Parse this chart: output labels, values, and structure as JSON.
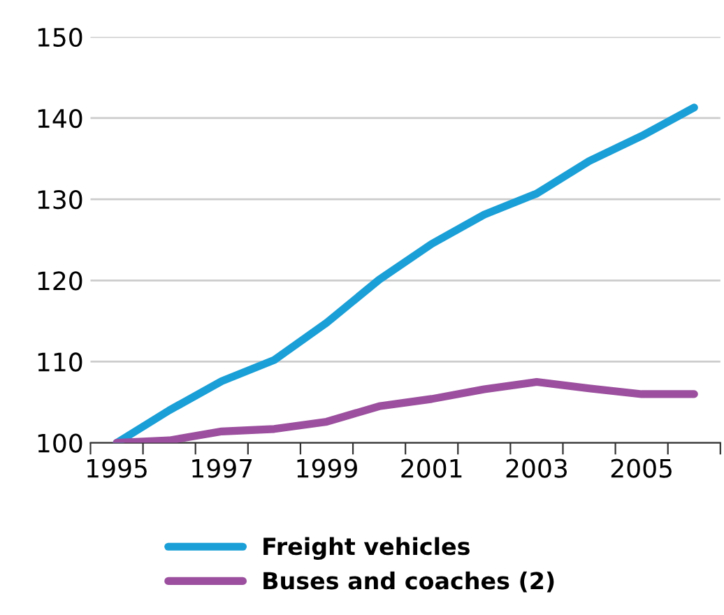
{
  "chart_data": {
    "type": "line",
    "x": [
      1995,
      1996,
      1997,
      1998,
      1999,
      2000,
      2001,
      2002,
      2003,
      2004,
      2005,
      2006
    ],
    "series": [
      {
        "name": "Freight vehicles",
        "color": "#1a9fd6",
        "values": [
          100,
          104.0,
          107.6,
          110.2,
          114.8,
          120.1,
          124.5,
          128.1,
          130.7,
          134.7,
          137.8,
          141.3
        ]
      },
      {
        "name": "Buses and coaches (2)",
        "color": "#9b4f9e",
        "values": [
          100,
          100.3,
          101.4,
          101.7,
          102.6,
          104.5,
          105.4,
          106.6,
          107.5,
          106.7,
          106.0,
          106.0
        ]
      }
    ],
    "xlim": [
      1994.5,
      2006.5
    ],
    "xticks": [
      {
        "value": 1994.5,
        "label": null
      },
      {
        "value": 1995,
        "label": "1995"
      },
      {
        "value": 1995.5,
        "label": null
      },
      {
        "value": 1996.5,
        "label": null
      },
      {
        "value": 1997,
        "label": "1997"
      },
      {
        "value": 1997.5,
        "label": null
      },
      {
        "value": 1998.5,
        "label": null
      },
      {
        "value": 1999,
        "label": "1999"
      },
      {
        "value": 1999.5,
        "label": null
      },
      {
        "value": 2000.5,
        "label": null
      },
      {
        "value": 2001,
        "label": "2001"
      },
      {
        "value": 2001.5,
        "label": null
      },
      {
        "value": 2002.5,
        "label": null
      },
      {
        "value": 2003,
        "label": "2003"
      },
      {
        "value": 2003.5,
        "label": null
      },
      {
        "value": 2004.5,
        "label": null
      },
      {
        "value": 2005,
        "label": "2005"
      },
      {
        "value": 2005.5,
        "label": null
      },
      {
        "value": 2006.5,
        "label": null
      }
    ],
    "ylim": [
      100,
      150
    ],
    "yticks": [
      100,
      110,
      120,
      130,
      140,
      150
    ],
    "grid": "y",
    "legend": "bottom",
    "line_style": "solid",
    "marker": "none"
  }
}
